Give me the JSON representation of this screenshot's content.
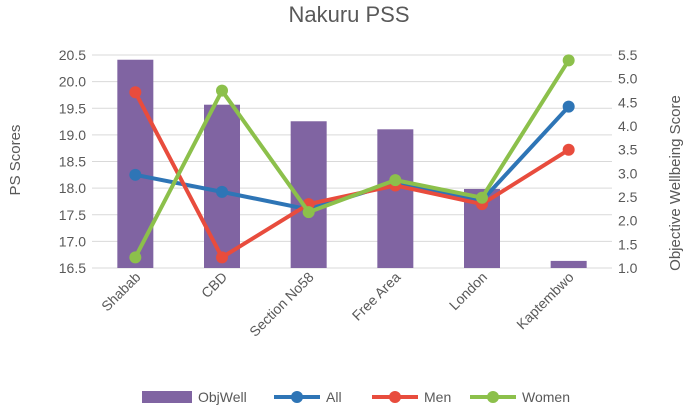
{
  "chart_data": {
    "type": "bar",
    "title": "Nakuru PSS",
    "categories": [
      "Shabab",
      "CBD",
      "Section No58",
      "Free Area",
      "London",
      "Kaptembwo"
    ],
    "ylabel": "PS Scores",
    "y2label": "Objective Wellbeing Score",
    "ylim": [
      16.5,
      20.5
    ],
    "y2lim": [
      1.0,
      5.5
    ],
    "yticks": [
      "20.5",
      "20.0",
      "19.5",
      "19.0",
      "18.5",
      "18.0",
      "17.5",
      "17.0",
      "16.5"
    ],
    "y2ticks": [
      "5.5",
      "5.0",
      "4.5",
      "4.0",
      "3.5",
      "3.0",
      "2.5",
      "2.0",
      "1.5",
      "1.0"
    ],
    "grid": true,
    "legend_position": "bottom",
    "bar_series": {
      "name": "ObjWell",
      "axis": "right",
      "color": "#8064a2",
      "values": [
        5.4,
        4.45,
        4.1,
        3.93,
        2.67,
        1.15
      ]
    },
    "series": [
      {
        "name": "All",
        "axis": "left",
        "color": "#2e75b6",
        "values": [
          18.25,
          17.93,
          17.6,
          18.1,
          17.77,
          19.53
        ]
      },
      {
        "name": "Men",
        "axis": "left",
        "color": "#e84c3d",
        "values": [
          19.8,
          16.7,
          17.7,
          18.05,
          17.7,
          18.72
        ]
      },
      {
        "name": "Women",
        "axis": "left",
        "color": "#8cc04b",
        "values": [
          16.7,
          19.83,
          17.55,
          18.15,
          17.82,
          20.4
        ]
      }
    ]
  }
}
